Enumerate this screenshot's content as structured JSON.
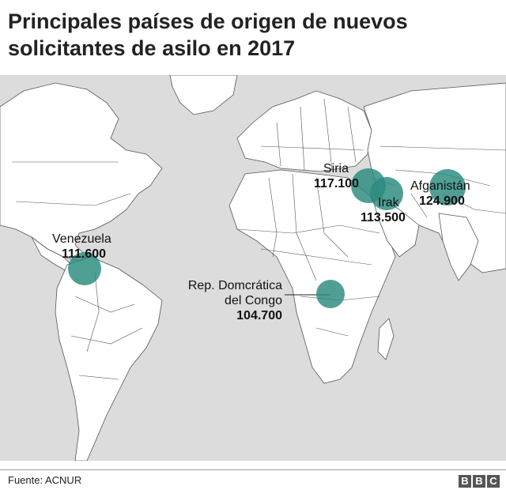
{
  "title": "Principales países de origen de nuevos solicitantes de asilo en 2017",
  "source": "Fuente: ACNUR",
  "logo": [
    "B",
    "B",
    "C"
  ],
  "colors": {
    "bubble": "#2a8a7e",
    "land": "#ffffff",
    "sea": "#dcdcdc",
    "border": "#555555"
  },
  "countries": [
    {
      "id": "venezuela",
      "name": "Venezuela",
      "value": "111.600",
      "amount": 111600
    },
    {
      "id": "siria",
      "name": "Siria",
      "value": "117.100",
      "amount": 117100
    },
    {
      "id": "irak",
      "name": "Irak",
      "value": "113.500",
      "amount": 113500
    },
    {
      "id": "afganistan",
      "name": "Afganistán",
      "value": "124.900",
      "amount": 124900
    },
    {
      "id": "congo",
      "name": "Rep. Domcrática del Congo",
      "name_lines": [
        "Rep. Domcrática",
        "del Congo"
      ],
      "value": "104.700",
      "amount": 104700
    }
  ]
}
